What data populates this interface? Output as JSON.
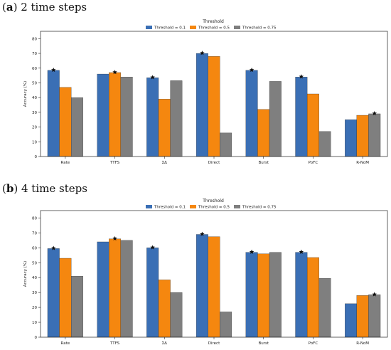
{
  "colors": {
    "t01": "#3a6fb5",
    "t05": "#f5870f",
    "t075": "#7f7f7f",
    "marker": "#111111",
    "axis": "#222222"
  },
  "chart_data": [
    {
      "type": "bar",
      "panel_letter": "a",
      "panel_text": "2 time steps",
      "legend_title": "Threshold",
      "legend_position": "top-center",
      "ylabel": "Accuracy (%)",
      "ylim": [
        0,
        85
      ],
      "yticks": [
        0,
        10,
        20,
        30,
        40,
        50,
        60,
        70,
        80
      ],
      "grid": false,
      "categories": [
        "Rate",
        "TTFS",
        "ΣΔ",
        "Direct",
        "Burst",
        "PoFC",
        "R-NoM"
      ],
      "series": [
        {
          "name": "Threshold = 0.1",
          "values": [
            58.5,
            56,
            53.5,
            70,
            58.5,
            54,
            25
          ]
        },
        {
          "name": "Threshold = 0.5",
          "values": [
            47,
            57,
            39,
            68,
            32,
            42.5,
            28
          ]
        },
        {
          "name": "Threshold = 0.75",
          "values": [
            40,
            54,
            51.5,
            16,
            51,
            17,
            29
          ]
        }
      ],
      "best_marker_series_index": [
        0,
        1,
        0,
        0,
        0,
        0,
        2
      ]
    },
    {
      "type": "bar",
      "panel_letter": "b",
      "panel_text": "4 time steps",
      "legend_title": "Threshold",
      "legend_position": "top-center",
      "ylabel": "Accuracy (%)",
      "ylim": [
        0,
        85
      ],
      "yticks": [
        0,
        10,
        20,
        30,
        40,
        50,
        60,
        70,
        80
      ],
      "grid": false,
      "categories": [
        "Rate",
        "TTFS",
        "ΣΔ",
        "Direct",
        "Burst",
        "PoFC",
        "R-NoM"
      ],
      "series": [
        {
          "name": "Threshold = 0.1",
          "values": [
            59.5,
            64,
            60,
            69,
            57,
            57,
            22.5
          ]
        },
        {
          "name": "Threshold = 0.5",
          "values": [
            53,
            66,
            38.5,
            67.5,
            56,
            53.5,
            28
          ]
        },
        {
          "name": "Threshold = 0.75",
          "values": [
            41,
            65,
            30,
            17,
            57,
            39.5,
            28.5
          ]
        }
      ],
      "best_marker_series_index": [
        0,
        1,
        0,
        0,
        0,
        0,
        2
      ]
    }
  ]
}
